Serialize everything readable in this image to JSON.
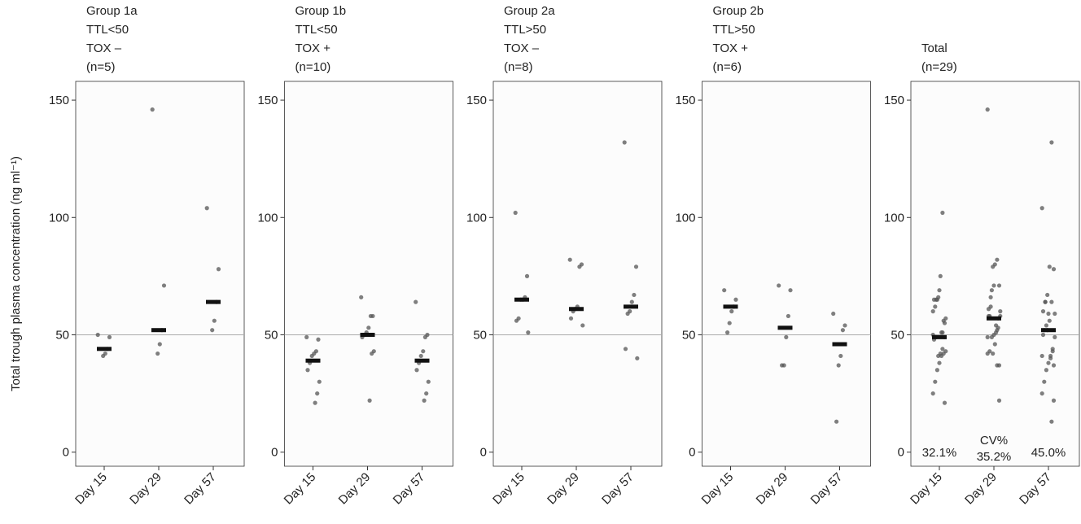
{
  "chart_data": [
    {
      "type": "strip",
      "title": [
        "Group 1a",
        "TTL<50",
        "TOX –",
        "(n=5)"
      ],
      "ylabel": "Total trough plasma concentration (ng ml⁻¹)",
      "categories": [
        "Day 15",
        "Day 29",
        "Day 57"
      ],
      "values": [
        [
          50,
          49,
          44,
          42,
          41
        ],
        [
          146,
          71,
          52,
          46,
          42
        ],
        [
          104,
          78,
          64,
          56,
          52
        ]
      ],
      "medians": [
        44,
        52,
        64
      ],
      "color": "#555555",
      "ylim": [
        -6,
        158
      ],
      "yticks": [
        0,
        50,
        100,
        150
      ],
      "reference_line": 50
    },
    {
      "type": "strip",
      "title": [
        "Group 1b",
        "TTL<50",
        "TOX +",
        "(n=10)"
      ],
      "categories": [
        "Day 15",
        "Day 29",
        "Day 57"
      ],
      "values": [
        [
          49,
          48,
          43,
          42,
          41,
          38,
          35,
          30,
          25,
          21
        ],
        [
          66,
          58,
          58,
          53,
          51,
          50,
          49,
          43,
          42,
          22
        ],
        [
          64,
          50,
          49,
          43,
          41,
          38,
          35,
          30,
          25,
          22
        ]
      ],
      "medians": [
        39,
        50,
        39
      ],
      "color": "#555555",
      "ylim": [
        -6,
        158
      ],
      "yticks": [
        0,
        50,
        100,
        150
      ],
      "reference_line": 50
    },
    {
      "type": "strip",
      "title": [
        "Group 2a",
        "TTL>50",
        "TOX –",
        "(n=8)"
      ],
      "categories": [
        "Day 15",
        "Day 29",
        "Day 57"
      ],
      "values": [
        [
          102,
          75,
          66,
          65,
          65,
          57,
          56,
          51
        ],
        [
          82,
          80,
          79,
          62,
          61,
          60,
          57,
          54
        ],
        [
          132,
          79,
          67,
          64,
          60,
          59,
          44,
          40
        ]
      ],
      "medians": [
        65,
        61,
        62
      ],
      "color": "#555555",
      "ylim": [
        -6,
        158
      ],
      "yticks": [
        0,
        50,
        100,
        150
      ],
      "reference_line": 50
    },
    {
      "type": "strip",
      "title": [
        "Group 2b",
        "TTL>50",
        "TOX +",
        "(n=6)"
      ],
      "categories": [
        "Day 15",
        "Day 29",
        "Day 57"
      ],
      "values": [
        [
          69,
          65,
          62,
          60,
          55,
          51
        ],
        [
          71,
          69,
          58,
          49,
          37,
          37
        ],
        [
          59,
          54,
          52,
          41,
          37,
          13
        ]
      ],
      "medians": [
        62,
        53,
        46
      ],
      "color": "#555555",
      "ylim": [
        -6,
        158
      ],
      "yticks": [
        0,
        50,
        100,
        150
      ],
      "reference_line": 50
    },
    {
      "type": "strip",
      "title": [
        "Total",
        "(n=29)"
      ],
      "categories": [
        "Day 15",
        "Day 29",
        "Day 57"
      ],
      "values": [
        [
          50,
          49,
          44,
          42,
          41,
          49,
          48,
          43,
          42,
          41,
          38,
          35,
          30,
          25,
          21,
          102,
          75,
          66,
          65,
          65,
          57,
          56,
          51,
          69,
          65,
          62,
          60,
          55,
          51
        ],
        [
          146,
          71,
          52,
          46,
          42,
          66,
          58,
          58,
          53,
          51,
          50,
          49,
          43,
          42,
          22,
          82,
          80,
          79,
          62,
          61,
          60,
          57,
          54,
          71,
          69,
          58,
          49,
          37,
          37
        ],
        [
          104,
          78,
          64,
          56,
          52,
          64,
          50,
          49,
          43,
          41,
          38,
          35,
          30,
          25,
          22,
          132,
          79,
          67,
          64,
          60,
          59,
          44,
          40,
          59,
          54,
          52,
          41,
          37,
          13
        ]
      ],
      "medians": [
        49,
        57,
        52
      ],
      "color": "#555555",
      "ylim": [
        -6,
        158
      ],
      "yticks": [
        0,
        50,
        100,
        150
      ],
      "reference_line": 50,
      "annotation_title": "CV%",
      "annotations": [
        "32.1%",
        "35.2%",
        "45.0%"
      ]
    }
  ]
}
